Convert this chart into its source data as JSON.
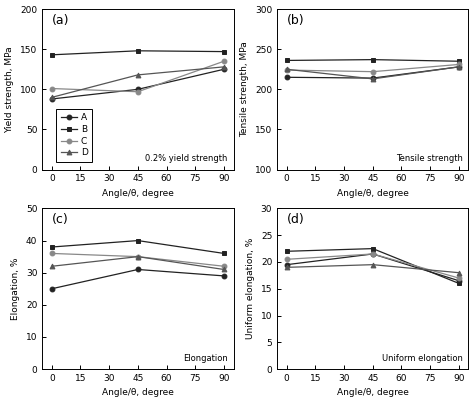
{
  "angles": [
    0,
    45,
    90
  ],
  "subplot_a": {
    "title": "(a)",
    "ylabel": "Yield strength, MPa",
    "xlabel": "Angle/θ, degree",
    "annotation": "0.2% yield strength",
    "ylim": [
      0,
      200
    ],
    "yticks": [
      0,
      50,
      100,
      150,
      200
    ],
    "xlim": [
      -5,
      95
    ],
    "xticks": [
      0,
      15,
      30,
      45,
      60,
      75,
      90
    ],
    "series": {
      "A": [
        88,
        100,
        125
      ],
      "B": [
        143,
        148,
        147
      ],
      "C": [
        101,
        97,
        135
      ],
      "D": [
        90,
        118,
        128
      ]
    }
  },
  "subplot_b": {
    "title": "(b)",
    "ylabel": "Tensile strength, MPa",
    "xlabel": "Angle/θ, degree",
    "annotation": "Tensile strength",
    "ylim": [
      100,
      300
    ],
    "yticks": [
      100,
      150,
      200,
      250,
      300
    ],
    "xlim": [
      -5,
      95
    ],
    "xticks": [
      0,
      15,
      30,
      45,
      60,
      75,
      90
    ],
    "series": {
      "A": [
        215,
        214,
        228
      ],
      "B": [
        236,
        237,
        235
      ],
      "C": [
        224,
        222,
        231
      ],
      "D": [
        225,
        213,
        228
      ]
    }
  },
  "subplot_c": {
    "title": "(c)",
    "ylabel": "Elongation, %",
    "xlabel": "Angle/θ, degree",
    "annotation": "Elongation",
    "ylim": [
      0,
      50
    ],
    "yticks": [
      0,
      10,
      20,
      30,
      40,
      50
    ],
    "xlim": [
      -5,
      95
    ],
    "xticks": [
      0,
      15,
      30,
      45,
      60,
      75,
      90
    ],
    "series": {
      "A": [
        25,
        31,
        29
      ],
      "B": [
        38,
        40,
        36
      ],
      "C": [
        36,
        35,
        32
      ],
      "D": [
        32,
        35,
        31
      ]
    }
  },
  "subplot_d": {
    "title": "(d)",
    "ylabel": "Uniform elongation, %",
    "xlabel": "Angle/θ, degree",
    "annotation": "Uniform elongation",
    "ylim": [
      0,
      30
    ],
    "yticks": [
      0,
      5,
      10,
      15,
      20,
      25,
      30
    ],
    "xlim": [
      -5,
      95
    ],
    "xticks": [
      0,
      15,
      30,
      45,
      60,
      75,
      90
    ],
    "series": {
      "A": [
        19.5,
        21.5,
        16.5
      ],
      "B": [
        22,
        22.5,
        16
      ],
      "C": [
        20.5,
        21.5,
        17
      ],
      "D": [
        19,
        19.5,
        18
      ]
    }
  },
  "markers": {
    "A": "o",
    "B": "s",
    "C": "o",
    "D": "^"
  },
  "colors": {
    "A": "#222222",
    "B": "#222222",
    "C": "#888888",
    "D": "#555555"
  },
  "markerfacecolors": {
    "A": "#222222",
    "B": "#222222",
    "C": "#888888",
    "D": "#555555"
  },
  "legend_labels": [
    "A",
    "B",
    "C",
    "D"
  ]
}
